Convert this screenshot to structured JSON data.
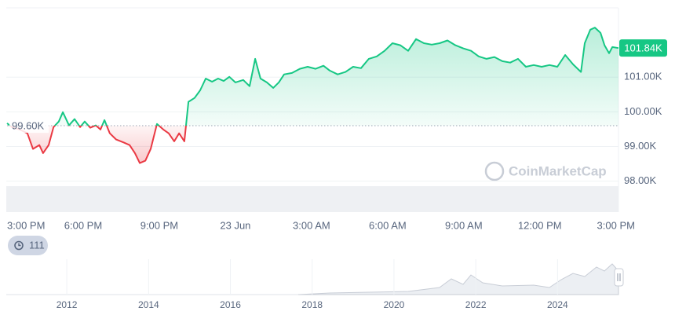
{
  "chart_data": {
    "type": "line",
    "x": [
      0,
      0.19,
      0.5,
      0.8,
      1.02,
      1.27,
      1.42,
      1.64,
      1.83,
      2.04,
      2.2,
      2.44,
      2.66,
      2.88,
      3.06,
      3.28,
      3.5,
      3.68,
      3.84,
      4.05,
      4.3,
      4.61,
      4.83,
      5.04,
      5.23,
      5.45,
      5.66,
      5.91,
      6.16,
      6.37,
      6.59,
      6.78,
      6.99,
      7.15,
      7.39,
      7.61,
      7.83,
      8.08,
      8.32,
      8.54,
      8.76,
      9.0,
      9.31,
      9.56,
      9.78,
      9.99,
      10.24,
      10.49,
      10.71,
      10.92,
      11.23,
      11.54,
      11.85,
      12.16,
      12.47,
      12.72,
      13.03,
      13.34,
      13.64,
      13.95,
      14.26,
      14.57,
      14.88,
      15.19,
      15.5,
      15.81,
      16.12,
      16.43,
      16.74,
      17.05,
      17.36,
      17.67,
      17.98,
      18.29,
      18.59,
      18.9,
      19.21,
      19.52,
      19.83,
      20.14,
      20.45,
      20.76,
      21.07,
      21.38,
      21.69,
      22.0,
      22.31,
      22.62,
      22.77,
      22.99,
      23.17,
      23.39,
      23.55,
      23.73,
      23.86,
      24.1
    ],
    "values": [
      99.67,
      99.56,
      99.49,
      99.38,
      98.93,
      99.04,
      98.81,
      99.04,
      99.56,
      99.72,
      99.99,
      99.61,
      99.79,
      99.56,
      99.72,
      99.54,
      99.61,
      99.49,
      99.76,
      99.38,
      99.2,
      99.11,
      99.04,
      98.81,
      98.52,
      98.59,
      98.93,
      99.65,
      99.49,
      99.38,
      99.15,
      99.38,
      99.15,
      100.29,
      100.4,
      100.62,
      100.96,
      100.87,
      100.96,
      100.89,
      101.01,
      100.85,
      100.92,
      100.74,
      101.53,
      100.96,
      100.85,
      100.69,
      100.85,
      101.08,
      101.12,
      101.24,
      101.3,
      101.24,
      101.33,
      101.19,
      101.08,
      101.15,
      101.3,
      101.26,
      101.53,
      101.6,
      101.76,
      101.98,
      101.92,
      101.76,
      102.1,
      101.98,
      101.94,
      101.98,
      102.06,
      101.92,
      101.83,
      101.76,
      101.6,
      101.53,
      101.58,
      101.46,
      101.42,
      101.53,
      101.3,
      101.35,
      101.3,
      101.35,
      101.3,
      101.64,
      101.37,
      101.15,
      101.98,
      102.37,
      102.43,
      102.28,
      101.92,
      101.69,
      101.87,
      101.84
    ],
    "color_up": "#16c784",
    "color_down": "#ea3943",
    "xlim": [
      0,
      24.1
    ],
    "xticks": [
      {
        "value": 0,
        "label": "3:00 PM"
      },
      {
        "value": 3,
        "label": "6:00 PM"
      },
      {
        "value": 6,
        "label": "9:00 PM"
      },
      {
        "value": 9,
        "label": "23 Jun"
      },
      {
        "value": 12,
        "label": "3:00 AM"
      },
      {
        "value": 15,
        "label": "6:00 AM"
      },
      {
        "value": 18,
        "label": "9:00 AM"
      },
      {
        "value": 21,
        "label": "12:00 PM"
      },
      {
        "value": 24,
        "label": "3:00 PM"
      }
    ],
    "ylim": [
      97.9,
      103.0
    ],
    "yticks": [
      {
        "value": 98,
        "label": "98.00K"
      },
      {
        "value": 99,
        "label": "99.00K"
      },
      {
        "value": 100,
        "label": "100.00K"
      },
      {
        "value": 101,
        "label": "101.00K"
      }
    ],
    "baseline": {
      "value": 99.6,
      "label": "99.60K"
    },
    "current": {
      "value": 101.84,
      "label": "101.84K"
    },
    "grid": true,
    "watermark": "CoinMarketCap"
  },
  "history_badge": 111,
  "navigator": {
    "xlim": [
      2010.52,
      2025.49
    ],
    "xticks": [
      2012,
      2014,
      2016,
      2018,
      2020,
      2022,
      2024
    ]
  }
}
